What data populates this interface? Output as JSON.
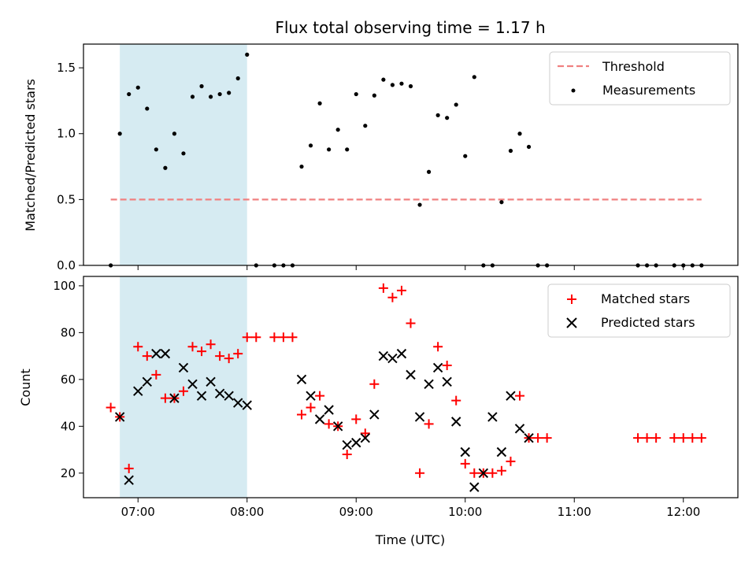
{
  "figure": {
    "title": "Flux total observing time = 1.17 h",
    "highlight_color": "#add8e6"
  },
  "chart_data": [
    {
      "type": "scatter",
      "panel": "top",
      "xlabel": "",
      "ylabel": "Matched/Predicted stars",
      "xlim": [
        "06:30",
        "12:30"
      ],
      "ylim": [
        0,
        1.68
      ],
      "yticks": [
        "0.0",
        "0.5",
        "1.0",
        "1.5"
      ],
      "highlight_span": [
        "06:50",
        "08:00"
      ],
      "legend": {
        "position": "top-right",
        "entries": [
          "Threshold",
          "Measurements"
        ]
      },
      "series": [
        {
          "name": "Threshold",
          "kind": "dashed-line",
          "color": "#f08080",
          "x": [
            "06:45",
            "12:10"
          ],
          "y": [
            0.5,
            0.5
          ]
        },
        {
          "name": "Measurements",
          "kind": "dot",
          "color": "#000000",
          "x": [
            "06:45",
            "06:50",
            "06:55",
            "07:00",
            "07:05",
            "07:10",
            "07:15",
            "07:20",
            "07:25",
            "07:30",
            "07:35",
            "07:40",
            "07:45",
            "07:50",
            "07:55",
            "08:00",
            "08:05",
            "08:15",
            "08:20",
            "08:25",
            "08:30",
            "08:35",
            "08:40",
            "08:45",
            "08:50",
            "08:55",
            "09:00",
            "09:05",
            "09:10",
            "09:15",
            "09:20",
            "09:25",
            "09:30",
            "09:35",
            "09:40",
            "09:45",
            "09:50",
            "09:55",
            "10:00",
            "10:05",
            "10:10",
            "10:15",
            "10:20",
            "10:25",
            "10:30",
            "10:35",
            "10:40",
            "10:45",
            "11:35",
            "11:40",
            "11:45",
            "11:55",
            "12:00",
            "12:05",
            "12:10"
          ],
          "y": [
            0.0,
            1.0,
            1.3,
            1.35,
            1.19,
            0.88,
            0.74,
            1.0,
            0.85,
            1.28,
            1.36,
            1.28,
            1.3,
            1.31,
            1.42,
            1.6,
            0.0,
            0.0,
            0.0,
            0.0,
            0.75,
            0.91,
            1.23,
            0.88,
            1.03,
            0.88,
            1.3,
            1.06,
            1.29,
            1.41,
            1.37,
            1.38,
            1.36,
            0.46,
            0.71,
            1.14,
            1.12,
            1.22,
            0.83,
            1.43,
            0.0,
            0.0,
            0.48,
            0.87,
            1.0,
            0.9,
            0.0,
            0.0,
            0.0,
            0.0,
            0.0,
            0.0,
            0.0,
            0.0,
            0.0
          ]
        }
      ]
    },
    {
      "type": "scatter",
      "panel": "bottom",
      "xlabel": "Time (UTC)",
      "ylabel": "Count",
      "xlim": [
        "06:30",
        "12:30"
      ],
      "ylim": [
        9.5,
        104
      ],
      "xticks": [
        "07:00",
        "08:00",
        "09:00",
        "10:00",
        "11:00",
        "12:00"
      ],
      "yticks": [
        "20",
        "40",
        "60",
        "80",
        "100"
      ],
      "highlight_span": [
        "06:50",
        "08:00"
      ],
      "legend": {
        "position": "top-right",
        "entries": [
          "Matched stars",
          "Predicted stars"
        ]
      },
      "series": [
        {
          "name": "Matched stars",
          "kind": "plus",
          "color": "#ff0000",
          "x": [
            "06:45",
            "06:50",
            "06:55",
            "07:00",
            "07:05",
            "07:10",
            "07:15",
            "07:20",
            "07:25",
            "07:30",
            "07:35",
            "07:40",
            "07:45",
            "07:50",
            "07:55",
            "08:00",
            "08:05",
            "08:15",
            "08:20",
            "08:25",
            "08:30",
            "08:35",
            "08:40",
            "08:45",
            "08:50",
            "08:55",
            "09:00",
            "09:05",
            "09:10",
            "09:15",
            "09:20",
            "09:25",
            "09:30",
            "09:35",
            "09:40",
            "09:45",
            "09:50",
            "09:55",
            "10:00",
            "10:05",
            "10:10",
            "10:15",
            "10:20",
            "10:25",
            "10:30",
            "10:35",
            "10:40",
            "10:45",
            "11:35",
            "11:40",
            "11:45",
            "11:55",
            "12:00",
            "12:05",
            "12:10"
          ],
          "y": [
            48,
            44,
            22,
            74,
            70,
            62,
            52,
            52,
            55,
            74,
            72,
            75,
            70,
            69,
            71,
            78,
            78,
            78,
            78,
            78,
            45,
            48,
            53,
            41,
            40,
            28,
            43,
            37,
            58,
            99,
            95,
            98,
            84,
            20,
            41,
            74,
            66,
            51,
            24,
            20,
            20,
            20,
            21,
            25,
            53,
            35,
            35,
            35,
            35,
            35,
            35,
            35,
            35,
            35,
            35
          ]
        },
        {
          "name": "Predicted stars",
          "kind": "x",
          "color": "#000000",
          "x": [
            "06:50",
            "06:55",
            "07:00",
            "07:05",
            "07:10",
            "07:15",
            "07:20",
            "07:25",
            "07:30",
            "07:35",
            "07:40",
            "07:45",
            "07:50",
            "07:55",
            "08:00",
            "08:30",
            "08:35",
            "08:40",
            "08:45",
            "08:50",
            "08:55",
            "09:00",
            "09:05",
            "09:10",
            "09:15",
            "09:20",
            "09:25",
            "09:30",
            "09:35",
            "09:40",
            "09:45",
            "09:50",
            "09:55",
            "10:00",
            "10:05",
            "10:10",
            "10:15",
            "10:20",
            "10:25",
            "10:30",
            "10:35"
          ],
          "y": [
            44,
            17,
            55,
            59,
            71,
            71,
            52,
            65,
            58,
            53,
            59,
            54,
            53,
            50,
            49,
            60,
            53,
            43,
            47,
            40,
            32,
            33,
            35,
            45,
            70,
            69,
            71,
            62,
            44,
            58,
            65,
            59,
            42,
            29,
            14,
            20,
            44,
            29,
            53,
            39,
            35
          ]
        }
      ]
    }
  ]
}
